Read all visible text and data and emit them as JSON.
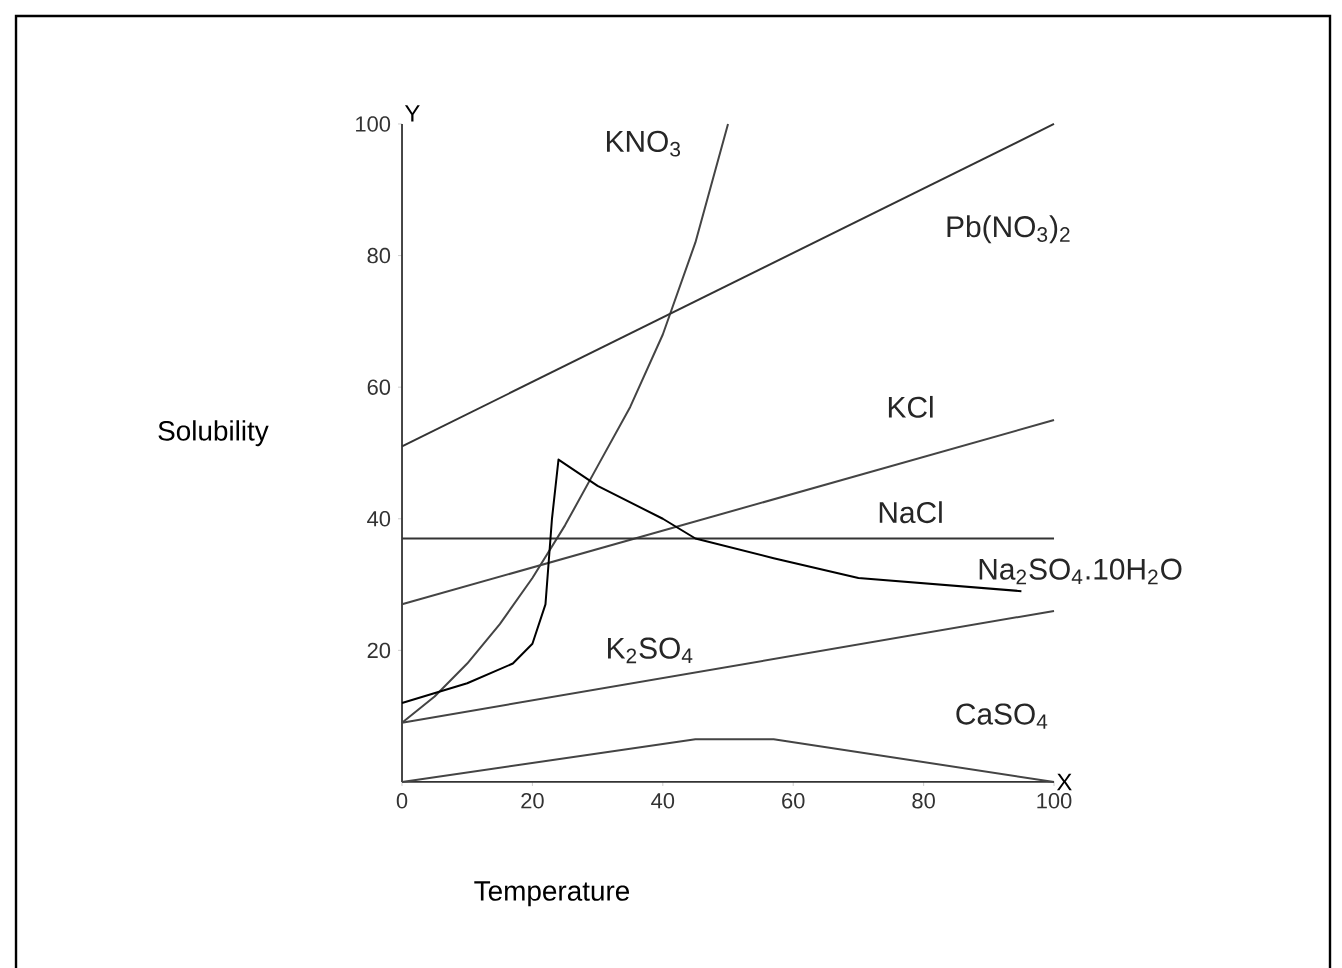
{
  "chart_data": {
    "type": "line",
    "xlabel": "Temperature",
    "ylabel": "Solubility",
    "annotations": [
      "Y",
      "X"
    ],
    "xlim": [
      0,
      100
    ],
    "ylim": [
      0,
      100
    ],
    "xticks": [
      0,
      20,
      40,
      60,
      80,
      100
    ],
    "yticks": [
      20,
      40,
      60,
      80,
      100
    ],
    "grid": false,
    "marker": "none",
    "line_style": "solid",
    "series": [
      {
        "name": "KNO$_{3}$",
        "color": "#444444",
        "x": [
          0,
          5,
          10,
          15,
          20,
          25,
          30,
          35,
          40,
          45,
          50
        ],
        "values": [
          9,
          13,
          18,
          24,
          31,
          39,
          48,
          57,
          68,
          82,
          100
        ]
      },
      {
        "name": "Pb(NO$_{3}$)$_{2}$",
        "color": "#333333",
        "x": [
          0,
          100
        ],
        "values": [
          51,
          100
        ]
      },
      {
        "name": "KCl",
        "color": "#444444",
        "x": [
          0,
          100
        ],
        "values": [
          27,
          55
        ]
      },
      {
        "name": "NaCl",
        "color": "#333333",
        "x": [
          0,
          100
        ],
        "values": [
          37,
          37
        ]
      },
      {
        "name": "Na$_{2}$SO$_{4}$.10H$_{2}$O",
        "color": "#000000",
        "x": [
          0,
          10,
          17,
          20,
          22,
          23,
          24,
          30,
          40,
          45,
          57,
          70,
          95
        ],
        "values": [
          12,
          15,
          18,
          21,
          27,
          40,
          49,
          45,
          40,
          37,
          34,
          31,
          29
        ]
      },
      {
        "name": "K$_{2}$SO$_{4}$",
        "color": "#444444",
        "x": [
          0,
          100
        ],
        "values": [
          9,
          26
        ]
      },
      {
        "name": "CaSO$_{4}$",
        "color": "#444444",
        "x": [
          0,
          45,
          57,
          100
        ],
        "values": [
          0,
          6.5,
          6.5,
          0
        ]
      }
    ]
  }
}
